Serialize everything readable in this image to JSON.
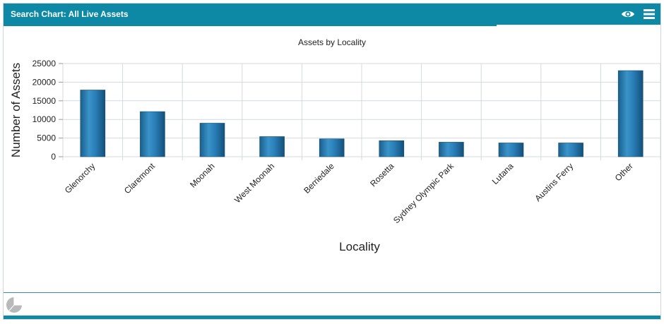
{
  "header": {
    "title": "Search Chart: All Live Assets",
    "icons": [
      "eye-icon",
      "menu-icon"
    ],
    "color": "#0d89a6"
  },
  "footer": {
    "icon": "pie-chart-icon"
  },
  "chart_data": {
    "type": "bar",
    "title": "Assets by Locality",
    "xlabel": "Locality",
    "ylabel": "Number of Assets",
    "categories": [
      "Glenorchy",
      "Claremont",
      "Moonah",
      "West Moonah",
      "Berriedale",
      "Rosetta",
      "Sydney Olympic Park",
      "Lutana",
      "Austins Ferry",
      "Other"
    ],
    "values": [
      17900,
      12100,
      9000,
      5400,
      4800,
      4300,
      3900,
      3700,
      3700,
      23100
    ],
    "ylim": [
      0,
      25000
    ],
    "yticks": [
      0,
      5000,
      10000,
      15000,
      20000,
      25000
    ],
    "grid": true,
    "bar_color": "#1f74a8"
  }
}
